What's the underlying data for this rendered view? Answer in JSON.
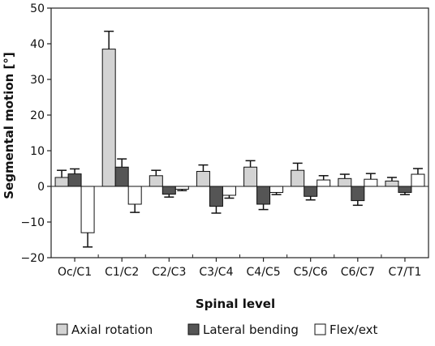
{
  "chart_data": {
    "type": "bar",
    "title": "",
    "xlabel": "Spinal level",
    "ylabel": "Segmental motion [°]",
    "ylim": [
      -20,
      50
    ],
    "yticks": [
      -20,
      -10,
      0,
      10,
      20,
      30,
      40,
      50
    ],
    "grid": false,
    "legend_position": "bottom",
    "categories": [
      "Oc/C1",
      "C1/C2",
      "C2/C3",
      "C3/C4",
      "C4/C5",
      "C5/C6",
      "C6/C7",
      "C7/T1"
    ],
    "series": [
      {
        "name": "Axial rotation",
        "color": "#d3d3d3",
        "values": [
          2.5,
          38.5,
          3.0,
          4.2,
          5.4,
          4.5,
          2.2,
          1.5
        ],
        "errors": [
          2.0,
          5.0,
          1.5,
          1.8,
          1.8,
          2.0,
          1.2,
          1.0
        ]
      },
      {
        "name": "Lateral bending",
        "color": "#555555",
        "values": [
          3.5,
          5.4,
          -2.2,
          -5.6,
          -5.0,
          -2.8,
          -4.0,
          -1.7
        ],
        "errors": [
          1.4,
          2.3,
          0.8,
          1.9,
          1.5,
          1.0,
          1.3,
          0.6
        ]
      },
      {
        "name": "Flex/ext",
        "color": "#ffffff",
        "values": [
          -13.0,
          -5.0,
          -0.8,
          -2.5,
          -1.7,
          1.8,
          2.0,
          3.4
        ],
        "errors": [
          4.0,
          2.3,
          0.4,
          0.8,
          0.6,
          1.2,
          1.6,
          1.6
        ]
      }
    ]
  }
}
